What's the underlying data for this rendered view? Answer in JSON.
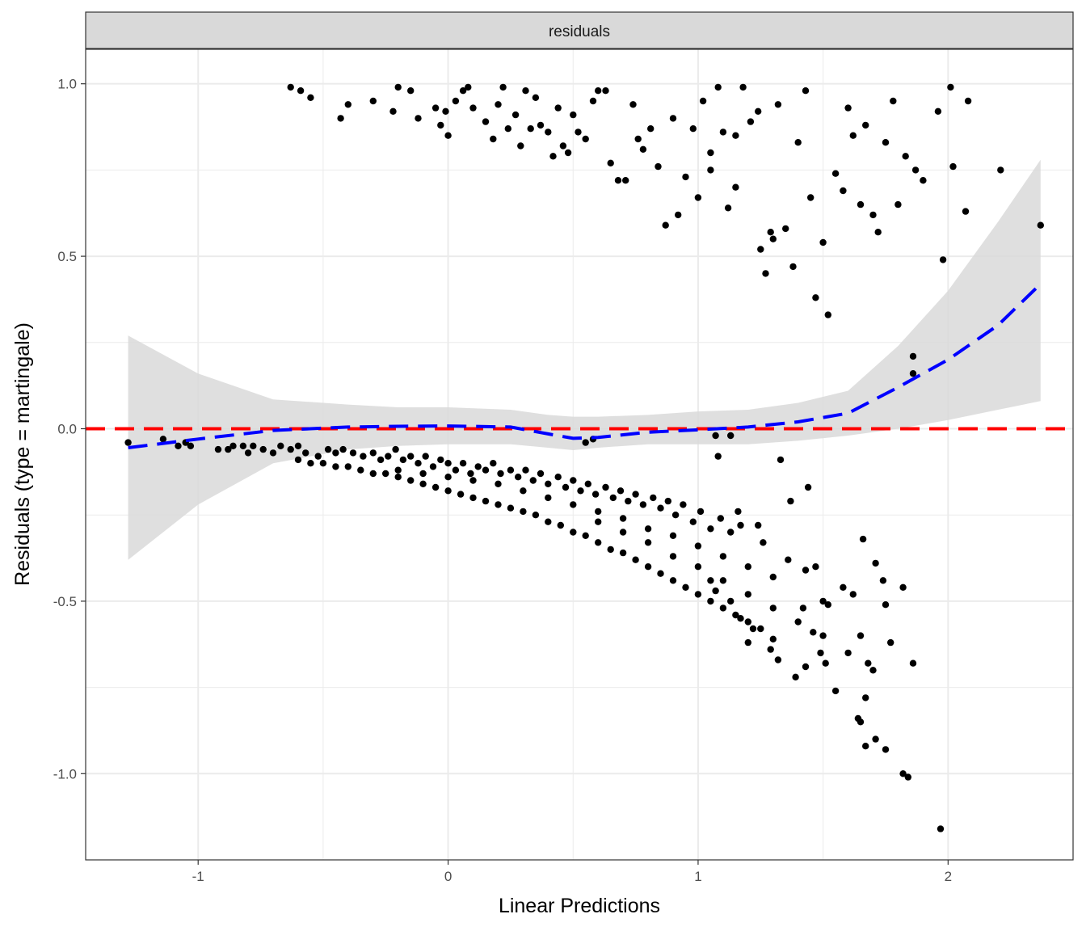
{
  "chart_data": {
    "type": "scatter",
    "facet_label": "residuals",
    "xlabel": "Linear Predictions",
    "ylabel": "Residuals (type = martingale)",
    "xlim": [
      -1.45,
      2.5
    ],
    "ylim": [
      -1.25,
      1.1
    ],
    "x_ticks": [
      {
        "value": -1,
        "label": "-1"
      },
      {
        "value": 0,
        "label": "0"
      },
      {
        "value": 1,
        "label": "1"
      },
      {
        "value": 2,
        "label": "2"
      }
    ],
    "y_ticks": [
      {
        "value": 1.0,
        "label": "1.0"
      },
      {
        "value": 0.5,
        "label": "0.5"
      },
      {
        "value": 0.0,
        "label": "0.0"
      },
      {
        "value": -0.5,
        "label": "-0.5"
      },
      {
        "value": -1.0,
        "label": "-1.0"
      }
    ],
    "grid": true,
    "colors": {
      "points": "#000000",
      "smooth_line": "#0000ff",
      "reference_line": "#ff0000",
      "confidence_band": "#d9d9d9",
      "strip_fill": "#d9d9d9"
    },
    "reference_line": {
      "y": 0,
      "style": "dashed"
    },
    "smooth": {
      "style": "dashed",
      "x": [
        -1.28,
        -1.0,
        -0.7,
        -0.4,
        -0.2,
        0.0,
        0.25,
        0.4,
        0.5,
        0.6,
        0.8,
        1.0,
        1.2,
        1.4,
        1.6,
        1.8,
        2.0,
        2.2,
        2.37
      ],
      "y": [
        -0.055,
        -0.03,
        -0.005,
        0.005,
        0.007,
        0.008,
        0.005,
        -0.015,
        -0.028,
        -0.025,
        -0.01,
        -0.003,
        0.005,
        0.02,
        0.045,
        0.12,
        0.2,
        0.3,
        0.42
      ],
      "lower": [
        -0.38,
        -0.22,
        -0.1,
        -0.06,
        -0.05,
        -0.045,
        -0.045,
        -0.055,
        -0.062,
        -0.055,
        -0.045,
        -0.045,
        -0.045,
        -0.035,
        -0.02,
        0.0,
        0.025,
        0.055,
        0.08
      ],
      "upper": [
        0.27,
        0.16,
        0.085,
        0.07,
        0.062,
        0.062,
        0.055,
        0.04,
        0.035,
        0.035,
        0.04,
        0.05,
        0.055,
        0.075,
        0.11,
        0.24,
        0.4,
        0.6,
        0.78
      ]
    },
    "points": [
      [
        -1.28,
        -0.04
      ],
      [
        -1.14,
        -0.03
      ],
      [
        -1.08,
        -0.05
      ],
      [
        -1.05,
        -0.04
      ],
      [
        -1.03,
        -0.05
      ],
      [
        -0.92,
        -0.06
      ],
      [
        -0.88,
        -0.06
      ],
      [
        -0.86,
        -0.05
      ],
      [
        -0.82,
        -0.05
      ],
      [
        -0.8,
        -0.07
      ],
      [
        -0.78,
        -0.05
      ],
      [
        -0.74,
        -0.06
      ],
      [
        -0.7,
        -0.07
      ],
      [
        -0.67,
        -0.05
      ],
      [
        -0.63,
        -0.06
      ],
      [
        -0.6,
        -0.05
      ],
      [
        -0.57,
        -0.07
      ],
      [
        -0.52,
        -0.08
      ],
      [
        -0.48,
        -0.06
      ],
      [
        -0.45,
        -0.07
      ],
      [
        -0.42,
        -0.06
      ],
      [
        -0.38,
        -0.07
      ],
      [
        -0.34,
        -0.08
      ],
      [
        -0.3,
        -0.07
      ],
      [
        -0.27,
        -0.09
      ],
      [
        -0.24,
        -0.08
      ],
      [
        -0.21,
        -0.06
      ],
      [
        -0.18,
        -0.09
      ],
      [
        -0.15,
        -0.08
      ],
      [
        -0.12,
        -0.1
      ],
      [
        -0.09,
        -0.08
      ],
      [
        -0.06,
        -0.11
      ],
      [
        -0.03,
        -0.09
      ],
      [
        0.0,
        -0.1
      ],
      [
        0.03,
        -0.12
      ],
      [
        0.06,
        -0.1
      ],
      [
        0.09,
        -0.13
      ],
      [
        0.12,
        -0.11
      ],
      [
        0.15,
        -0.12
      ],
      [
        0.18,
        -0.1
      ],
      [
        0.21,
        -0.13
      ],
      [
        0.25,
        -0.12
      ],
      [
        0.28,
        -0.14
      ],
      [
        0.31,
        -0.12
      ],
      [
        0.34,
        -0.15
      ],
      [
        0.37,
        -0.13
      ],
      [
        0.4,
        -0.16
      ],
      [
        0.44,
        -0.14
      ],
      [
        0.47,
        -0.17
      ],
      [
        0.5,
        -0.15
      ],
      [
        0.53,
        -0.18
      ],
      [
        0.56,
        -0.16
      ],
      [
        0.59,
        -0.19
      ],
      [
        0.63,
        -0.17
      ],
      [
        0.66,
        -0.2
      ],
      [
        0.69,
        -0.18
      ],
      [
        0.72,
        -0.21
      ],
      [
        0.75,
        -0.19
      ],
      [
        0.78,
        -0.22
      ],
      [
        0.82,
        -0.2
      ],
      [
        0.85,
        -0.23
      ],
      [
        0.88,
        -0.21
      ],
      [
        0.91,
        -0.25
      ],
      [
        0.94,
        -0.22
      ],
      [
        0.98,
        -0.27
      ],
      [
        1.01,
        -0.24
      ],
      [
        1.05,
        -0.29
      ],
      [
        1.09,
        -0.26
      ],
      [
        1.13,
        -0.3
      ],
      [
        1.17,
        -0.28
      ],
      [
        -0.6,
        -0.09
      ],
      [
        -0.55,
        -0.1
      ],
      [
        -0.5,
        -0.1
      ],
      [
        -0.45,
        -0.11
      ],
      [
        -0.4,
        -0.11
      ],
      [
        -0.35,
        -0.12
      ],
      [
        -0.3,
        -0.13
      ],
      [
        -0.25,
        -0.13
      ],
      [
        -0.2,
        -0.14
      ],
      [
        -0.15,
        -0.15
      ],
      [
        -0.1,
        -0.16
      ],
      [
        -0.05,
        -0.17
      ],
      [
        0.0,
        -0.18
      ],
      [
        0.05,
        -0.19
      ],
      [
        0.1,
        -0.2
      ],
      [
        0.15,
        -0.21
      ],
      [
        0.2,
        -0.22
      ],
      [
        0.25,
        -0.23
      ],
      [
        0.3,
        -0.24
      ],
      [
        0.35,
        -0.25
      ],
      [
        0.4,
        -0.27
      ],
      [
        0.45,
        -0.28
      ],
      [
        0.5,
        -0.3
      ],
      [
        0.55,
        -0.31
      ],
      [
        0.6,
        -0.33
      ],
      [
        0.65,
        -0.35
      ],
      [
        0.7,
        -0.36
      ],
      [
        0.75,
        -0.38
      ],
      [
        0.8,
        -0.4
      ],
      [
        0.85,
        -0.42
      ],
      [
        0.9,
        -0.44
      ],
      [
        0.95,
        -0.46
      ],
      [
        1.0,
        -0.48
      ],
      [
        1.05,
        -0.5
      ],
      [
        1.1,
        -0.52
      ],
      [
        1.15,
        -0.54
      ],
      [
        1.2,
        -0.56
      ],
      [
        1.25,
        -0.58
      ],
      [
        1.3,
        -0.61
      ],
      [
        -0.2,
        -0.12
      ],
      [
        -0.1,
        -0.13
      ],
      [
        0.0,
        -0.14
      ],
      [
        0.1,
        -0.15
      ],
      [
        0.2,
        -0.16
      ],
      [
        0.3,
        -0.18
      ],
      [
        0.4,
        -0.2
      ],
      [
        0.5,
        -0.22
      ],
      [
        0.6,
        -0.24
      ],
      [
        0.7,
        -0.26
      ],
      [
        0.8,
        -0.29
      ],
      [
        0.9,
        -0.31
      ],
      [
        1.0,
        -0.34
      ],
      [
        1.1,
        -0.37
      ],
      [
        1.2,
        -0.4
      ],
      [
        1.3,
        -0.43
      ],
      [
        0.6,
        -0.27
      ],
      [
        0.7,
        -0.3
      ],
      [
        0.8,
        -0.33
      ],
      [
        0.9,
        -0.37
      ],
      [
        1.0,
        -0.4
      ],
      [
        1.1,
        -0.44
      ],
      [
        1.2,
        -0.48
      ],
      [
        1.3,
        -0.52
      ],
      [
        1.4,
        -0.56
      ],
      [
        1.5,
        -0.6
      ],
      [
        1.6,
        -0.65
      ],
      [
        1.7,
        -0.7
      ],
      [
        0.55,
        -0.04
      ],
      [
        0.58,
        -0.03
      ],
      [
        1.07,
        -0.02
      ],
      [
        1.13,
        -0.02
      ],
      [
        1.08,
        -0.08
      ],
      [
        1.33,
        -0.09
      ],
      [
        1.37,
        -0.21
      ],
      [
        1.44,
        -0.17
      ],
      [
        1.16,
        -0.24
      ],
      [
        1.24,
        -0.28
      ],
      [
        1.26,
        -0.33
      ],
      [
        1.36,
        -0.38
      ],
      [
        1.43,
        -0.41
      ],
      [
        1.47,
        -0.4
      ],
      [
        1.42,
        -0.52
      ],
      [
        1.5,
        -0.5
      ],
      [
        1.52,
        -0.51
      ],
      [
        1.58,
        -0.46
      ],
      [
        1.62,
        -0.48
      ],
      [
        1.66,
        -0.32
      ],
      [
        1.71,
        -0.39
      ],
      [
        1.74,
        -0.44
      ],
      [
        1.75,
        -0.51
      ],
      [
        1.82,
        -0.46
      ],
      [
        1.46,
        -0.59
      ],
      [
        1.49,
        -0.65
      ],
      [
        1.51,
        -0.68
      ],
      [
        1.55,
        -0.76
      ],
      [
        1.43,
        -0.69
      ],
      [
        1.39,
        -0.72
      ],
      [
        1.65,
        -0.6
      ],
      [
        1.68,
        -0.68
      ],
      [
        1.77,
        -0.62
      ],
      [
        1.86,
        -0.68
      ],
      [
        1.64,
        -0.84
      ],
      [
        1.65,
        -0.85
      ],
      [
        1.67,
        -0.78
      ],
      [
        1.67,
        -0.92
      ],
      [
        1.71,
        -0.9
      ],
      [
        1.75,
        -0.93
      ],
      [
        1.82,
        -1.0
      ],
      [
        1.84,
        -1.01
      ],
      [
        1.97,
        -1.16
      ],
      [
        1.29,
        -0.64
      ],
      [
        1.32,
        -0.67
      ],
      [
        1.22,
        -0.58
      ],
      [
        1.2,
        -0.62
      ],
      [
        1.17,
        -0.55
      ],
      [
        1.13,
        -0.5
      ],
      [
        1.07,
        -0.47
      ],
      [
        1.05,
        -0.44
      ],
      [
        -0.63,
        0.99
      ],
      [
        -0.59,
        0.98
      ],
      [
        -0.55,
        0.96
      ],
      [
        -0.43,
        0.9
      ],
      [
        -0.4,
        0.94
      ],
      [
        -0.3,
        0.95
      ],
      [
        -0.22,
        0.92
      ],
      [
        -0.2,
        0.99
      ],
      [
        -0.15,
        0.98
      ],
      [
        -0.12,
        0.9
      ],
      [
        -0.05,
        0.93
      ],
      [
        -0.03,
        0.88
      ],
      [
        -0.01,
        0.92
      ],
      [
        0.0,
        0.85
      ],
      [
        0.03,
        0.95
      ],
      [
        0.06,
        0.98
      ],
      [
        0.08,
        0.99
      ],
      [
        0.1,
        0.93
      ],
      [
        0.15,
        0.89
      ],
      [
        0.18,
        0.84
      ],
      [
        0.2,
        0.94
      ],
      [
        0.22,
        0.99
      ],
      [
        0.24,
        0.87
      ],
      [
        0.27,
        0.91
      ],
      [
        0.29,
        0.82
      ],
      [
        0.31,
        0.98
      ],
      [
        0.33,
        0.87
      ],
      [
        0.35,
        0.96
      ],
      [
        0.37,
        0.88
      ],
      [
        0.4,
        0.86
      ],
      [
        0.42,
        0.79
      ],
      [
        0.44,
        0.93
      ],
      [
        0.46,
        0.82
      ],
      [
        0.48,
        0.8
      ],
      [
        0.5,
        0.91
      ],
      [
        0.52,
        0.86
      ],
      [
        0.55,
        0.84
      ],
      [
        0.58,
        0.95
      ],
      [
        0.6,
        0.98
      ],
      [
        0.63,
        0.98
      ],
      [
        0.65,
        0.77
      ],
      [
        0.68,
        0.72
      ],
      [
        0.71,
        0.72
      ],
      [
        0.74,
        0.94
      ],
      [
        0.76,
        0.84
      ],
      [
        0.78,
        0.81
      ],
      [
        0.81,
        0.87
      ],
      [
        0.84,
        0.76
      ],
      [
        0.87,
        0.59
      ],
      [
        0.9,
        0.9
      ],
      [
        0.92,
        0.62
      ],
      [
        0.95,
        0.73
      ],
      [
        0.98,
        0.87
      ],
      [
        1.0,
        0.67
      ],
      [
        1.02,
        0.95
      ],
      [
        1.05,
        0.75
      ],
      [
        1.08,
        0.99
      ],
      [
        1.1,
        0.86
      ],
      [
        1.12,
        0.64
      ],
      [
        1.15,
        0.7
      ],
      [
        1.18,
        0.99
      ],
      [
        1.21,
        0.89
      ],
      [
        1.24,
        0.92
      ],
      [
        1.27,
        0.45
      ],
      [
        1.29,
        0.57
      ],
      [
        1.32,
        0.94
      ],
      [
        1.35,
        0.58
      ],
      [
        1.38,
        0.47
      ],
      [
        1.4,
        0.83
      ],
      [
        1.43,
        0.98
      ],
      [
        1.45,
        0.67
      ],
      [
        1.47,
        0.38
      ],
      [
        1.5,
        0.54
      ],
      [
        1.52,
        0.33
      ],
      [
        1.55,
        0.74
      ],
      [
        1.58,
        0.69
      ],
      [
        1.6,
        0.93
      ],
      [
        1.62,
        0.85
      ],
      [
        1.65,
        0.65
      ],
      [
        1.67,
        0.88
      ],
      [
        1.7,
        0.62
      ],
      [
        1.72,
        0.57
      ],
      [
        1.75,
        0.83
      ],
      [
        1.78,
        0.95
      ],
      [
        1.8,
        0.65
      ],
      [
        1.83,
        0.79
      ],
      [
        1.87,
        0.75
      ],
      [
        1.9,
        0.72
      ],
      [
        1.96,
        0.92
      ],
      [
        1.98,
        0.49
      ],
      [
        2.01,
        0.99
      ],
      [
        2.02,
        0.76
      ],
      [
        2.07,
        0.63
      ],
      [
        2.08,
        0.95
      ],
      [
        2.21,
        0.75
      ],
      [
        2.37,
        0.59
      ],
      [
        1.86,
        0.21
      ],
      [
        1.86,
        0.16
      ],
      [
        1.25,
        0.52
      ],
      [
        1.3,
        0.55
      ],
      [
        1.15,
        0.85
      ],
      [
        1.05,
        0.8
      ]
    ]
  }
}
